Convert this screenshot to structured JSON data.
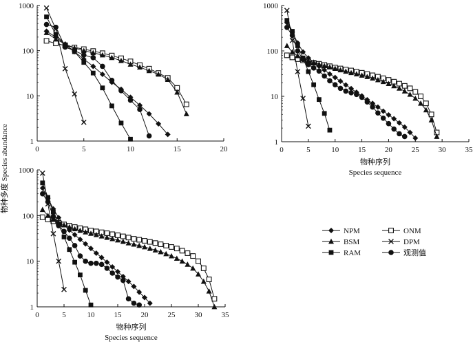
{
  "figure": {
    "ylabel": "物种多度 Species abundance",
    "legend": {
      "placement": "right-middle",
      "entries": [
        {
          "label": "NPM",
          "marker": "diamond"
        },
        {
          "label": "ONM",
          "marker": "square-open"
        },
        {
          "label": "BSM",
          "marker": "triangle"
        },
        {
          "label": "DPM",
          "marker": "cross"
        },
        {
          "label": "RAM",
          "marker": "square"
        },
        {
          "label": "观测值",
          "marker": "circle"
        }
      ]
    }
  },
  "chart_data": [
    {
      "type": "line",
      "yscale": "log",
      "xlim": [
        0,
        20
      ],
      "ylim": [
        1,
        1000
      ],
      "xticks": [
        0,
        5,
        10,
        15,
        20
      ],
      "yticks": [
        1,
        10,
        100,
        1000
      ],
      "xlabel_cn": "",
      "xlabel_en": "",
      "series": [
        {
          "name": "NPM",
          "marker": "diamond",
          "x": [
            1,
            2,
            3,
            4,
            5,
            6,
            7,
            8,
            9,
            10,
            11,
            12,
            13,
            14
          ],
          "y": [
            270,
            200,
            140,
            95,
            65,
            45,
            30,
            20,
            14,
            9.3,
            6.2,
            4.0,
            2.4,
            1.4
          ]
        },
        {
          "name": "ONM",
          "marker": "square-open",
          "x": [
            1,
            2,
            3,
            4,
            5,
            6,
            7,
            8,
            9,
            10,
            11,
            12,
            13,
            14,
            15,
            16
          ],
          "y": [
            165,
            145,
            130,
            118,
            108,
            98,
            88,
            78,
            68,
            58,
            48,
            40,
            32,
            25,
            15,
            6.5
          ]
        },
        {
          "name": "BSM",
          "marker": "triangle",
          "x": [
            1,
            2,
            3,
            4,
            5,
            6,
            7,
            8,
            9,
            10,
            11,
            12,
            13,
            14,
            15,
            16
          ],
          "y": [
            250,
            180,
            140,
            115,
            100,
            90,
            80,
            70,
            60,
            50,
            43,
            36,
            30,
            23,
            12,
            4
          ]
        },
        {
          "name": "DPM",
          "marker": "cross",
          "x": [
            1,
            2,
            3,
            4,
            5
          ],
          "y": [
            880,
            300,
            40,
            11,
            2.6
          ]
        },
        {
          "name": "RAM",
          "marker": "square",
          "x": [
            1,
            2,
            3,
            4,
            5,
            6,
            7,
            8,
            9,
            10
          ],
          "y": [
            560,
            230,
            135,
            95,
            55,
            32,
            15,
            6,
            2.5,
            1.1
          ]
        },
        {
          "name": "观测值",
          "marker": "circle",
          "x": [
            1,
            2,
            3,
            4,
            5,
            6,
            7,
            8,
            9,
            10,
            11,
            12
          ],
          "y": [
            380,
            330,
            120,
            100,
            80,
            70,
            45,
            22,
            13,
            8,
            5,
            1.3
          ]
        }
      ]
    },
    {
      "type": "line",
      "yscale": "log",
      "xlim": [
        0,
        35
      ],
      "ylim": [
        1,
        1000
      ],
      "xticks": [
        0,
        5,
        10,
        15,
        20,
        25,
        30,
        35
      ],
      "yticks": [
        1,
        10,
        100,
        1000
      ],
      "xlabel_cn": "物种序列",
      "xlabel_en": "Species sequence",
      "series": [
        {
          "name": "NPM",
          "marker": "diamond",
          "x": [
            1,
            2,
            3,
            4,
            5,
            6,
            7,
            8,
            9,
            10,
            11,
            12,
            13,
            14,
            15,
            16,
            17,
            18,
            19,
            20,
            21,
            22,
            23,
            24,
            25
          ],
          "y": [
            420,
            260,
            150,
            95,
            70,
            56,
            46,
            38,
            31,
            26,
            21.5,
            17.8,
            14.8,
            12.3,
            10.2,
            8.4,
            7,
            5.8,
            4.7,
            3.9,
            3.2,
            2.6,
            2.1,
            1.6,
            1.2
          ]
        },
        {
          "name": "ONM",
          "marker": "square-open",
          "x": [
            1,
            2,
            3,
            4,
            5,
            6,
            7,
            8,
            9,
            10,
            11,
            12,
            13,
            14,
            15,
            16,
            17,
            18,
            19,
            20,
            21,
            22,
            23,
            24,
            25,
            26,
            27,
            28,
            29
          ],
          "y": [
            80,
            72,
            66,
            62,
            58,
            55,
            52,
            49,
            46,
            43,
            41,
            39,
            37,
            35,
            33,
            31,
            29,
            27,
            25,
            23,
            21,
            19,
            17,
            15,
            12.5,
            10,
            7,
            4,
            1.6
          ]
        },
        {
          "name": "BSM",
          "marker": "triangle",
          "x": [
            1,
            2,
            3,
            4,
            5,
            6,
            7,
            8,
            9,
            10,
            11,
            12,
            13,
            14,
            15,
            16,
            17,
            18,
            19,
            20,
            21,
            22,
            23,
            24,
            25,
            26,
            27,
            28,
            29
          ],
          "y": [
            130,
            95,
            78,
            68,
            61,
            56,
            51,
            47,
            44,
            41,
            38,
            35.5,
            33,
            31,
            29,
            27,
            25,
            23,
            21,
            19,
            17,
            15,
            13,
            11,
            9,
            7,
            5,
            3,
            1.3
          ]
        },
        {
          "name": "DPM",
          "marker": "cross",
          "x": [
            1,
            2,
            3,
            4,
            5
          ],
          "y": [
            780,
            170,
            35,
            9,
            2.2
          ]
        },
        {
          "name": "RAM",
          "marker": "square",
          "x": [
            1,
            2,
            3,
            4,
            5,
            6,
            7,
            8,
            9
          ],
          "y": [
            470,
            270,
            130,
            70,
            35,
            18,
            8.5,
            4.2,
            1.8
          ]
        },
        {
          "name": "观测值",
          "marker": "circle",
          "x": [
            1,
            2,
            3,
            4,
            5,
            6,
            7,
            8,
            9,
            10,
            11,
            12,
            13,
            14,
            15,
            16,
            17,
            18,
            19,
            20,
            21,
            22,
            23
          ],
          "y": [
            330,
            220,
            100,
            65,
            50,
            42,
            36,
            28,
            22,
            18,
            15,
            13,
            12,
            11,
            9.5,
            7.5,
            5.8,
            4.3,
            3.3,
            2.5,
            1.9,
            1.5,
            1.3
          ]
        }
      ]
    },
    {
      "type": "line",
      "yscale": "log",
      "xlim": [
        0,
        35
      ],
      "ylim": [
        1,
        1000
      ],
      "xticks": [
        0,
        5,
        10,
        15,
        20,
        25,
        30,
        35
      ],
      "yticks": [
        1,
        10,
        100,
        1000
      ],
      "xlabel_cn": "物种序列",
      "xlabel_en": "Species sequence",
      "series": [
        {
          "name": "NPM",
          "marker": "diamond",
          "x": [
            1,
            2,
            3,
            4,
            5,
            6,
            7,
            8,
            9,
            10,
            11,
            12,
            13,
            14,
            15,
            16,
            17,
            18,
            19,
            20,
            21
          ],
          "y": [
            400,
            240,
            140,
            90,
            63,
            48,
            38,
            30,
            24,
            19,
            15,
            12,
            9.5,
            7.5,
            5.9,
            4.6,
            3.6,
            2.8,
            2.1,
            1.6,
            1.2
          ]
        },
        {
          "name": "ONM",
          "marker": "square-open",
          "x": [
            1,
            2,
            3,
            4,
            5,
            6,
            7,
            8,
            9,
            10,
            11,
            12,
            13,
            14,
            15,
            16,
            17,
            18,
            19,
            20,
            21,
            22,
            23,
            24,
            25,
            26,
            27,
            28,
            29,
            30,
            31,
            32,
            33
          ],
          "y": [
            92,
            82,
            75,
            69,
            64,
            60,
            56,
            53,
            50,
            47,
            45,
            43,
            41,
            39,
            37,
            35,
            33,
            31,
            29.5,
            28,
            26.5,
            25,
            23.5,
            22,
            20.5,
            19,
            17,
            15,
            13,
            10,
            7,
            4,
            1.5
          ]
        },
        {
          "name": "BSM",
          "marker": "triangle",
          "x": [
            1,
            2,
            3,
            4,
            5,
            6,
            7,
            8,
            9,
            10,
            11,
            12,
            13,
            14,
            15,
            16,
            17,
            18,
            19,
            20,
            21,
            22,
            23,
            24,
            25,
            26,
            27,
            28,
            29,
            30,
            31,
            32,
            33
          ],
          "y": [
            135,
            100,
            82,
            70,
            62,
            56,
            51,
            47,
            43.5,
            40.5,
            38,
            35.5,
            33,
            31,
            29,
            27,
            25,
            23.5,
            22,
            20.5,
            19,
            17.5,
            16,
            14.5,
            13,
            11.5,
            10,
            8.5,
            7,
            5.2,
            3.6,
            2.2,
            1.0
          ]
        },
        {
          "name": "DPM",
          "marker": "cross",
          "x": [
            1,
            2,
            3,
            4,
            5
          ],
          "y": [
            850,
            180,
            40,
            10,
            2.4
          ]
        },
        {
          "name": "RAM",
          "marker": "square",
          "x": [
            1,
            2,
            3,
            4,
            5,
            6,
            7,
            8,
            9,
            10
          ],
          "y": [
            520,
            250,
            120,
            65,
            34,
            18,
            9.5,
            5,
            2.3,
            1.1
          ]
        },
        {
          "name": "观测值",
          "marker": "circle",
          "x": [
            1,
            2,
            3,
            4,
            5,
            6,
            7,
            8,
            9,
            10,
            11,
            12,
            13,
            14,
            15,
            16,
            17,
            18,
            19
          ],
          "y": [
            300,
            200,
            95,
            60,
            45,
            32,
            22,
            13,
            10,
            9,
            9,
            8.5,
            7,
            5.5,
            4.5,
            3.8,
            1.5,
            1.2,
            1.1
          ]
        }
      ]
    }
  ]
}
